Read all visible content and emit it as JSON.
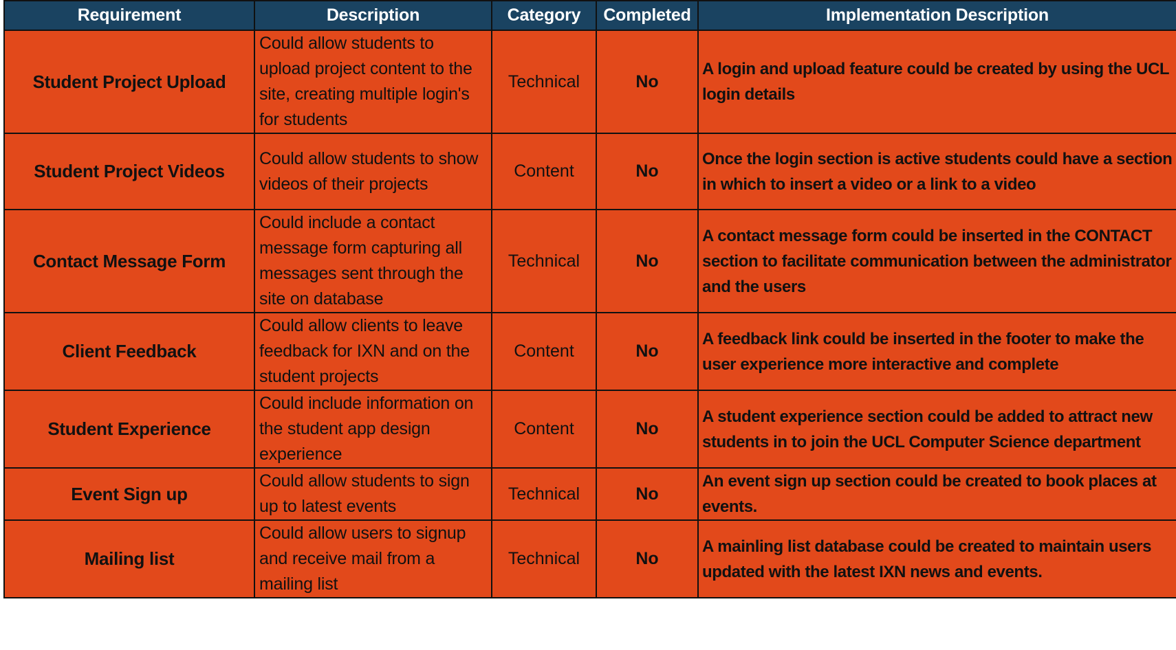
{
  "table": {
    "headers": {
      "requirement": "Requirement",
      "description": "Description",
      "category": "Category",
      "completed": "Completed",
      "implementation": "Implementation Description"
    },
    "rows": [
      {
        "requirement": "Student Project Upload",
        "description": "Could allow students to upload project content to the site, creating multiple login's for students",
        "category": "Technical",
        "completed": "No",
        "implementation": "A login and upload feature could be created by using the UCL login details"
      },
      {
        "requirement": "Student Project Videos",
        "description": "Could allow students to show videos of their projects",
        "category": "Content",
        "completed": "No",
        "implementation": "Once the login section is active students could have a section in which to insert a video or a link to a video"
      },
      {
        "requirement": "Contact Message Form",
        "description": "Could include a contact message form capturing all messages sent through the site on database",
        "category": "Technical",
        "completed": "No",
        "implementation": "A contact message form could be inserted in the CONTACT section to facilitate communication between the administrator and the users"
      },
      {
        "requirement": "Client Feedback",
        "description": "Could allow clients to leave feedback for IXN and on the student projects",
        "category": "Content",
        "completed": "No",
        "implementation": "A feedback link could be inserted in the footer to make the user experience more interactive and complete"
      },
      {
        "requirement": "Student Experience",
        "description": "Could include information on the student app design experience",
        "category": "Content",
        "completed": "No",
        "implementation": "A student experience section could be added to attract new students in to join the UCL Computer Science department"
      },
      {
        "requirement": "Event Sign up",
        "description": "Could allow students to sign up to latest events",
        "category": "Technical",
        "completed": "No",
        "implementation": "An event sign up section could be created to book places  at events."
      },
      {
        "requirement": "Mailing list",
        "description": "Could allow users to signup and receive mail from a mailing list",
        "category": "Technical",
        "completed": "No",
        "implementation": "A mainling list database could be created to maintain users updated with the latest IXN news and events."
      }
    ]
  },
  "colors": {
    "header_bg": "#1a4361",
    "row_bg": "#e2491b",
    "border": "#111111"
  }
}
